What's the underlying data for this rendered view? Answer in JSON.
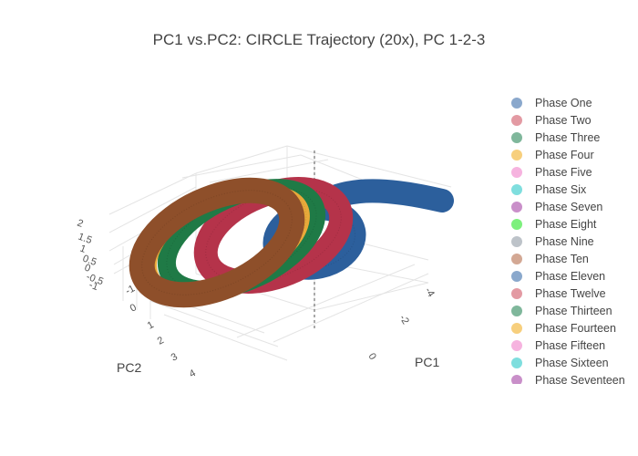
{
  "chart_data": {
    "type": "scatter3d",
    "title": "PC1 vs.PC2: CIRCLE Trajectory (20x), PC 1-2-3",
    "axes": {
      "x": {
        "label": "PC1",
        "ticks": [
          "-4",
          "-2",
          "0"
        ]
      },
      "y": {
        "label": "PC2",
        "ticks": [
          "-1",
          "0",
          "1",
          "2",
          "3",
          "4"
        ]
      },
      "z": {
        "label": "",
        "ticks": [
          "2",
          "1.5",
          "1",
          "0.5",
          "0",
          "-0.5",
          "-1"
        ]
      }
    },
    "legend_position": "right",
    "series": [
      {
        "name": "Phase One",
        "color": "#8aa8cc",
        "x_range": [
          -5.3,
          -0.6
        ],
        "y_range": [
          -0.1,
          0.3
        ],
        "z_range": [
          -0.4,
          0.2
        ]
      },
      {
        "name": "Phase Two",
        "color": "#e39aa3"
      },
      {
        "name": "Phase Three",
        "color": "#7fb79b"
      },
      {
        "name": "Phase Four",
        "color": "#f7cf7d"
      },
      {
        "name": "Phase Five",
        "color": "#f6b3df"
      },
      {
        "name": "Phase Six",
        "color": "#7fdede"
      },
      {
        "name": "Phase Seven",
        "color": "#c98fc9"
      },
      {
        "name": "Phase Eight",
        "color": "#7df07d"
      },
      {
        "name": "Phase Nine",
        "color": "#bdc3c9"
      },
      {
        "name": "Phase Ten",
        "color": "#d3a894"
      },
      {
        "name": "Phase Eleven",
        "color": "#8aa8cc"
      },
      {
        "name": "Phase Twelve",
        "color": "#e39aa3"
      },
      {
        "name": "Phase Thirteen",
        "color": "#7fb79b"
      },
      {
        "name": "Phase Fourteen",
        "color": "#f7cf7d"
      },
      {
        "name": "Phase Fifteen",
        "color": "#f6b3df"
      },
      {
        "name": "Phase Sixteen",
        "color": "#7fdede"
      },
      {
        "name": "Phase Seventeen",
        "color": "#c98fc9"
      }
    ],
    "visible_rings": [
      {
        "name": "blue arc",
        "color": "#2c5f9c",
        "shape": "arc",
        "pc1_range": [
          -5,
          -0.6
        ]
      },
      {
        "name": "blue ring",
        "color": "#2c5f9c",
        "shape": "ring",
        "pc1_center": -0.9,
        "pc2_center": 0.4,
        "radius": 1.1
      },
      {
        "name": "red ring",
        "color": "#b5334a",
        "shape": "ring",
        "pc1_center": 0.6,
        "pc2_center": 1.2,
        "radius": 1.3
      },
      {
        "name": "green ring",
        "color": "#1f7a46",
        "shape": "ring",
        "pc1_center": 1.2,
        "pc2_center": 1.6,
        "radius": 1.4
      },
      {
        "name": "yellow ring",
        "color": "#e8a93a",
        "shape": "ring",
        "pc1_center": 1.5,
        "pc2_center": 1.8,
        "radius": 1.4
      },
      {
        "name": "brown ring",
        "color": "#8e4f2a",
        "shape": "ring",
        "pc1_center": 1.9,
        "pc2_center": 2.1,
        "radius": 1.5
      }
    ]
  }
}
